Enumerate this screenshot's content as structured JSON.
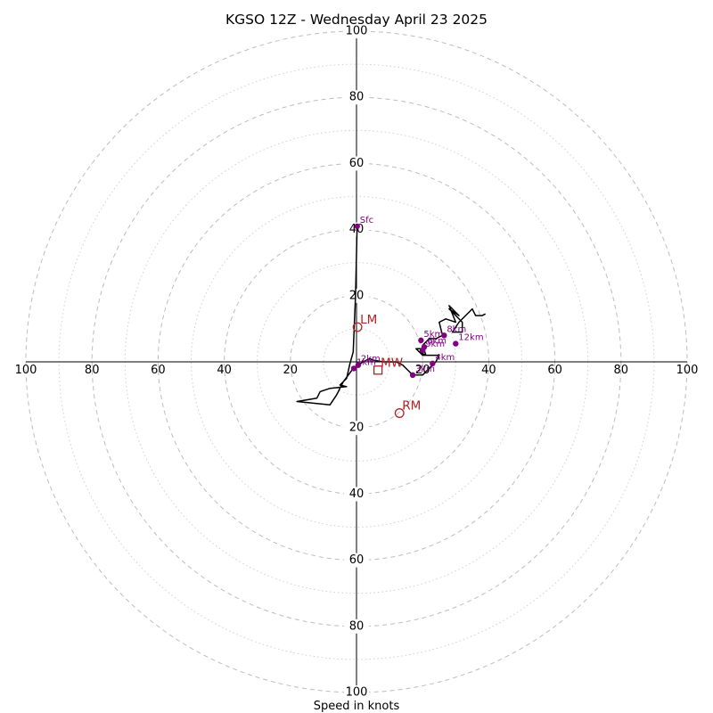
{
  "chart_data": {
    "type": "line",
    "title": "KGSO 12Z - Wednesday April 23 2025",
    "xlabel": "Speed in knots",
    "rings_major": [
      20,
      40,
      60,
      80,
      100
    ],
    "rings_minor": [
      10,
      30,
      50,
      70,
      90
    ],
    "axis_max": 100,
    "tick_labels": {
      "right": [
        "20",
        "40",
        "60",
        "80",
        "100"
      ],
      "left": [
        "20",
        "40",
        "60",
        "80",
        "100"
      ],
      "top": [
        "20",
        "40",
        "60",
        "80",
        "100"
      ],
      "bottom": [
        "20",
        "40",
        "60",
        "80",
        "100"
      ]
    },
    "hodograph": {
      "color": "#000000",
      "points": [
        [
          0.2,
          41
        ],
        [
          -0.3,
          20
        ],
        [
          -1,
          3
        ],
        [
          -2,
          -0.6
        ],
        [
          -3,
          -5
        ],
        [
          -5,
          -7
        ],
        [
          -3,
          -7.5
        ],
        [
          -8,
          -8
        ],
        [
          -11,
          -9
        ],
        [
          -12,
          -11
        ],
        [
          -18,
          -12
        ],
        [
          -8,
          -13
        ],
        [
          -6,
          -10
        ],
        [
          -4,
          -6
        ],
        [
          -1,
          -2
        ],
        [
          2,
          0
        ],
        [
          4,
          1
        ],
        [
          5,
          0.5
        ],
        [
          8,
          0
        ],
        [
          12,
          0
        ],
        [
          14,
          -1
        ],
        [
          16,
          -3
        ],
        [
          17,
          -4
        ],
        [
          20,
          -4
        ],
        [
          22,
          -2
        ],
        [
          24,
          0
        ],
        [
          25,
          2
        ],
        [
          21,
          2
        ],
        [
          19,
          3
        ],
        [
          20,
          4
        ],
        [
          18,
          4
        ],
        [
          20,
          2
        ],
        [
          21,
          2
        ],
        [
          20,
          5
        ],
        [
          21,
          6
        ],
        [
          22,
          7
        ],
        [
          24,
          7
        ],
        [
          26,
          8
        ],
        [
          25,
          12
        ],
        [
          27,
          13
        ],
        [
          30,
          12
        ],
        [
          28,
          17
        ],
        [
          31,
          14
        ],
        [
          28,
          16
        ],
        [
          32,
          12
        ],
        [
          32,
          9
        ],
        [
          29,
          9
        ],
        [
          31,
          12
        ],
        [
          33,
          14
        ],
        [
          35,
          16
        ],
        [
          36,
          14
        ],
        [
          38,
          14
        ],
        [
          39,
          14.5
        ]
      ]
    },
    "height_markers": {
      "color": "#800080",
      "points": [
        {
          "label": "Sfc",
          "u": 0.2,
          "v": 41
        },
        {
          "label": "1km",
          "u": -0.8,
          "v": -2
        },
        {
          "label": "2km",
          "u": 0.5,
          "v": -1
        },
        {
          "label": "3km",
          "u": 17,
          "v": -4
        },
        {
          "label": "4km",
          "u": 23,
          "v": -0.5
        },
        {
          "label": "5km",
          "u": 19.5,
          "v": 6.5
        },
        {
          "label": "6km",
          "u": 20.5,
          "v": 4.5
        },
        {
          "label": "8km",
          "u": 26.5,
          "v": 8
        },
        {
          "label": "9km",
          "u": 20,
          "v": 3.5
        },
        {
          "label": "12km",
          "u": 30,
          "v": 5.5
        }
      ]
    },
    "storm_motions": {
      "color": "#b22222",
      "points": [
        {
          "label": "LM",
          "u": 0.3,
          "v": 10.5,
          "marker": "circle"
        },
        {
          "label": "RM",
          "u": 13,
          "v": -15.5,
          "marker": "circle"
        },
        {
          "label": "MW",
          "u": 6.5,
          "v": -2.5,
          "marker": "square"
        }
      ]
    }
  }
}
